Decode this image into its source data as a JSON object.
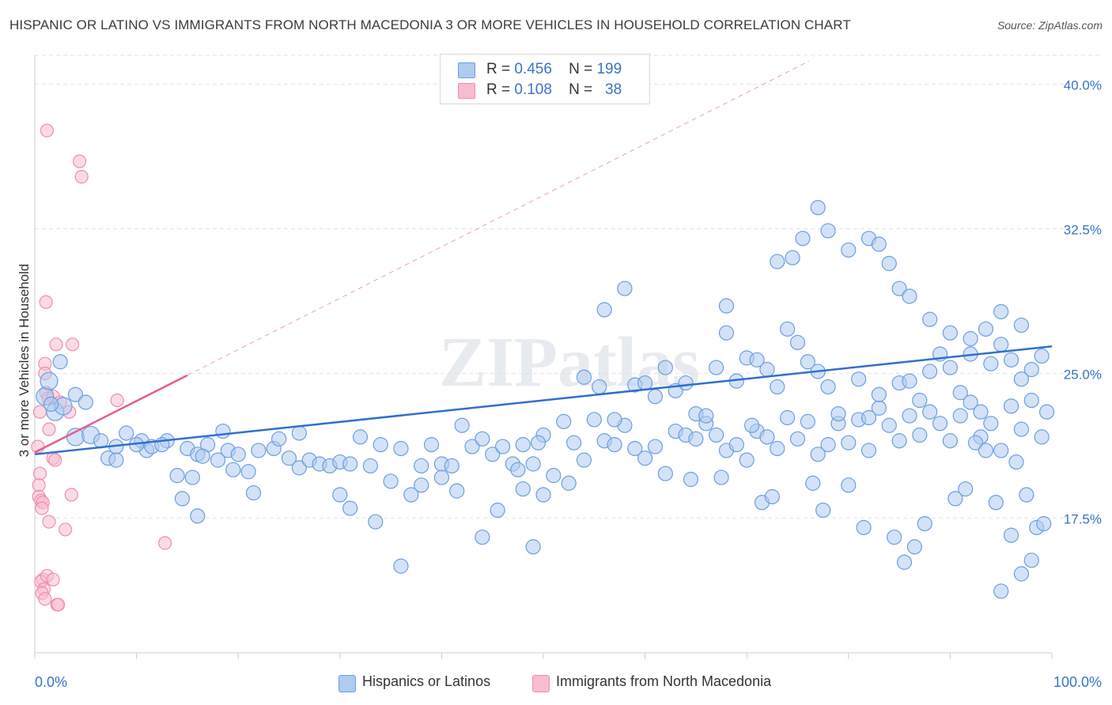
{
  "title": "HISPANIC OR LATINO VS IMMIGRANTS FROM NORTH MACEDONIA 3 OR MORE VEHICLES IN HOUSEHOLD CORRELATION CHART",
  "source": "Source: ZipAtlas.com",
  "watermark": "ZIPatlas",
  "legend_top": {
    "rows": [
      {
        "r_label": "R =",
        "r_value": "0.456",
        "n_label": "N =",
        "n_value": "199"
      },
      {
        "r_label": "R =",
        "r_value": "0.108",
        "n_label": "N =",
        "n_value": "38"
      }
    ]
  },
  "legend_bottom": [
    "Hispanics or Latinos",
    "Immigrants from North Macedonia"
  ],
  "chart_data": {
    "type": "scatter",
    "title": "HISPANIC OR LATINO VS IMMIGRANTS FROM NORTH MACEDONIA 3 OR MORE VEHICLES IN HOUSEHOLD CORRELATION CHART",
    "xlabel": "",
    "ylabel": "3 or more Vehicles in Household",
    "xlim": [
      0,
      100
    ],
    "ylim": [
      10.5,
      41.5
    ],
    "x_tick_labels": [
      "0.0%",
      "100.0%"
    ],
    "y_ticks": [
      17.5,
      25.0,
      32.5,
      40.0
    ],
    "y_tick_labels": [
      "17.5%",
      "25.0%",
      "32.5%",
      "40.0%"
    ],
    "grid": true,
    "legend_position": "bottom",
    "colors": {
      "blue_fill": "#aecbf0",
      "blue_stroke": "#6a9fe0",
      "blue_line": "#2f6fd0",
      "pink_fill": "#f7bdd0",
      "pink_stroke": "#ec8fae",
      "pink_line": "#e0608a",
      "grid": "#e2e2e2",
      "axis": "#cccccc",
      "tick_label": "#3a73c8"
    },
    "series": [
      {
        "name": "Hispanics or Latinos",
        "color": "#aecbf0",
        "trend": {
          "x": [
            0,
            100
          ],
          "y": [
            20.8,
            26.4
          ]
        },
        "points": [
          [
            1,
            23.8
          ],
          [
            1.4,
            24.6
          ],
          [
            2,
            23
          ],
          [
            2.8,
            23.3
          ],
          [
            4,
            21.7
          ],
          [
            5.5,
            21.8
          ],
          [
            6.5,
            21.5
          ],
          [
            8,
            21.2
          ],
          [
            7.2,
            20.6
          ],
          [
            9,
            21.9
          ],
          [
            10.5,
            21.5
          ],
          [
            11,
            21.0
          ],
          [
            11.5,
            21.2
          ],
          [
            13,
            21.5
          ],
          [
            12.5,
            21.3
          ],
          [
            14,
            19.7
          ],
          [
            15,
            21.1
          ],
          [
            16,
            20.8
          ],
          [
            15.5,
            19.6
          ],
          [
            17,
            21.3
          ],
          [
            18,
            20.5
          ],
          [
            19,
            21.0
          ],
          [
            18.5,
            22.0
          ],
          [
            16.5,
            20.7
          ],
          [
            20,
            20.8
          ],
          [
            21,
            19.9
          ],
          [
            22,
            21.0
          ],
          [
            23.5,
            21.1
          ],
          [
            24,
            21.6
          ],
          [
            25,
            20.6
          ],
          [
            26,
            20.1
          ],
          [
            27,
            20.5
          ],
          [
            28,
            20.3
          ],
          [
            29,
            20.2
          ],
          [
            30,
            20.4
          ],
          [
            31,
            20.3
          ],
          [
            32,
            21.7
          ],
          [
            33,
            20.2
          ],
          [
            34,
            21.3
          ],
          [
            35,
            19.4
          ],
          [
            36,
            21.1
          ],
          [
            37,
            18.7
          ],
          [
            38,
            20.2
          ],
          [
            39,
            21.3
          ],
          [
            40,
            20.3
          ],
          [
            41,
            20.2
          ],
          [
            42,
            22.3
          ],
          [
            43,
            21.2
          ],
          [
            44,
            21.6
          ],
          [
            45,
            20.8
          ],
          [
            46,
            21.2
          ],
          [
            47,
            20.3
          ],
          [
            48,
            21.3
          ],
          [
            49,
            20.3
          ],
          [
            50,
            21.8
          ],
          [
            52,
            22.5
          ],
          [
            53,
            21.4
          ],
          [
            54,
            20.5
          ],
          [
            55,
            22.6
          ],
          [
            56,
            21.5
          ],
          [
            57,
            21.3
          ],
          [
            58,
            22.3
          ],
          [
            59,
            21.1
          ],
          [
            60,
            20.6
          ],
          [
            61,
            21.2
          ],
          [
            62,
            19.8
          ],
          [
            63,
            22.0
          ],
          [
            64,
            21.8
          ],
          [
            65,
            21.6
          ],
          [
            66,
            22.4
          ],
          [
            67,
            21.8
          ],
          [
            68,
            21.0
          ],
          [
            69,
            21.3
          ],
          [
            70,
            20.5
          ],
          [
            71,
            22.0
          ],
          [
            72,
            21.7
          ],
          [
            73,
            21.1
          ],
          [
            74,
            22.7
          ],
          [
            75,
            21.6
          ],
          [
            76,
            22.5
          ],
          [
            77,
            20.8
          ],
          [
            78,
            21.3
          ],
          [
            79,
            22.4
          ],
          [
            80,
            21.4
          ],
          [
            81,
            22.6
          ],
          [
            82,
            21.0
          ],
          [
            83,
            23.2
          ],
          [
            84,
            22.3
          ],
          [
            85,
            21.5
          ],
          [
            86,
            22.8
          ],
          [
            87,
            21.8
          ],
          [
            88,
            23.0
          ],
          [
            89,
            22.4
          ],
          [
            90,
            21.5
          ],
          [
            91,
            22.8
          ],
          [
            92,
            23.5
          ],
          [
            93,
            21.7
          ],
          [
            94,
            22.4
          ],
          [
            95,
            21.0
          ],
          [
            96,
            23.3
          ],
          [
            97,
            22.1
          ],
          [
            98,
            23.6
          ],
          [
            99,
            21.7
          ],
          [
            99.5,
            23.0
          ],
          [
            4,
            23.9
          ],
          [
            5,
            23.5
          ],
          [
            2.5,
            25.6
          ],
          [
            1.6,
            23.4
          ],
          [
            8,
            20.5
          ],
          [
            10,
            21.3
          ],
          [
            14.5,
            18.5
          ],
          [
            16,
            17.6
          ],
          [
            19.5,
            20.0
          ],
          [
            21.5,
            18.8
          ],
          [
            26,
            21.9
          ],
          [
            30,
            18.7
          ],
          [
            31,
            18.0
          ],
          [
            33.5,
            17.3
          ],
          [
            36,
            15.0
          ],
          [
            38,
            19.2
          ],
          [
            40,
            19.6
          ],
          [
            41.5,
            18.9
          ],
          [
            44,
            16.5
          ],
          [
            45.5,
            17.9
          ],
          [
            47.5,
            20.0
          ],
          [
            48,
            19.0
          ],
          [
            49,
            16.0
          ],
          [
            49.5,
            21.4
          ],
          [
            50,
            18.7
          ],
          [
            51,
            19.7
          ],
          [
            52.5,
            19.3
          ],
          [
            54,
            24.8
          ],
          [
            55.5,
            24.3
          ],
          [
            56,
            28.3
          ],
          [
            57,
            22.6
          ],
          [
            58,
            29.4
          ],
          [
            59,
            24.4
          ],
          [
            60,
            24.5
          ],
          [
            61,
            23.8
          ],
          [
            62,
            25.3
          ],
          [
            63,
            24.1
          ],
          [
            64,
            24.5
          ],
          [
            65,
            22.9
          ],
          [
            66,
            22.8
          ],
          [
            67,
            25.3
          ],
          [
            68,
            27.1
          ],
          [
            69,
            24.6
          ],
          [
            70,
            25.8
          ],
          [
            71,
            25.7
          ],
          [
            72,
            25.2
          ],
          [
            73,
            24.3
          ],
          [
            74,
            27.3
          ],
          [
            75,
            26.6
          ],
          [
            76,
            25.6
          ],
          [
            77,
            25.1
          ],
          [
            78,
            24.3
          ],
          [
            79,
            22.9
          ],
          [
            80,
            19.2
          ],
          [
            81,
            24.7
          ],
          [
            82,
            22.7
          ],
          [
            83,
            23.9
          ],
          [
            84,
            30.7
          ],
          [
            85,
            24.5
          ],
          [
            86,
            24.6
          ],
          [
            87,
            23.6
          ],
          [
            88,
            25.1
          ],
          [
            89,
            26.0
          ],
          [
            90,
            25.3
          ],
          [
            91,
            24.0
          ],
          [
            92,
            26.0
          ],
          [
            93,
            23.0
          ],
          [
            94,
            25.5
          ],
          [
            95,
            26.5
          ],
          [
            96,
            25.7
          ],
          [
            97,
            24.7
          ],
          [
            98,
            25.2
          ],
          [
            99,
            25.9
          ],
          [
            70.5,
            22.3
          ],
          [
            64.5,
            19.5
          ],
          [
            67.5,
            19.6
          ],
          [
            71.5,
            18.3
          ],
          [
            72.5,
            18.6
          ],
          [
            76.5,
            19.3
          ],
          [
            77.5,
            17.9
          ],
          [
            81.5,
            17.0
          ],
          [
            84.5,
            16.5
          ],
          [
            85.5,
            15.2
          ],
          [
            86.5,
            16.0
          ],
          [
            87.5,
            17.2
          ],
          [
            90.5,
            18.5
          ],
          [
            91.5,
            19.0
          ],
          [
            92.5,
            21.4
          ],
          [
            93.5,
            21.0
          ],
          [
            94.5,
            18.3
          ],
          [
            96.5,
            20.4
          ],
          [
            97.5,
            18.7
          ],
          [
            98.5,
            17.0
          ],
          [
            99.2,
            17.2
          ],
          [
            98,
            15.3
          ],
          [
            97,
            14.6
          ],
          [
            96,
            16.6
          ],
          [
            95,
            13.7
          ],
          [
            68,
            28.5
          ],
          [
            73,
            30.8
          ],
          [
            74.5,
            31.0
          ],
          [
            75.5,
            32.0
          ],
          [
            77,
            33.6
          ],
          [
            78,
            32.4
          ],
          [
            80,
            31.4
          ],
          [
            82,
            32.0
          ],
          [
            83,
            31.7
          ],
          [
            85,
            29.4
          ],
          [
            86,
            29.0
          ],
          [
            88,
            27.8
          ],
          [
            90,
            27.1
          ],
          [
            92,
            26.8
          ],
          [
            93.5,
            27.3
          ],
          [
            95,
            28.2
          ],
          [
            97,
            27.5
          ]
        ]
      },
      {
        "name": "Immigrants from North Macedonia",
        "color": "#f7bdd0",
        "trend": {
          "x": [
            0,
            15
          ],
          "y": [
            20.9,
            24.9
          ]
        },
        "points": [
          [
            1.2,
            37.6
          ],
          [
            4.4,
            36
          ],
          [
            4.6,
            35.2
          ],
          [
            1.1,
            28.7
          ],
          [
            2.1,
            26.5
          ],
          [
            3.7,
            26.5
          ],
          [
            1.0,
            25.5
          ],
          [
            1.0,
            25.0
          ],
          [
            1.1,
            24.0
          ],
          [
            1.3,
            23.7
          ],
          [
            1.8,
            23.8
          ],
          [
            2.5,
            23.5
          ],
          [
            3.4,
            23.0
          ],
          [
            8.1,
            23.6
          ],
          [
            0.5,
            23.0
          ],
          [
            1.4,
            22.1
          ],
          [
            0.3,
            21.2
          ],
          [
            1.8,
            20.6
          ],
          [
            2.0,
            20.5
          ],
          [
            0.5,
            19.8
          ],
          [
            0.4,
            19.2
          ],
          [
            0.4,
            18.6
          ],
          [
            0.6,
            18.4
          ],
          [
            0.8,
            18.3
          ],
          [
            0.7,
            18.0
          ],
          [
            3.6,
            18.7
          ],
          [
            1.4,
            17.3
          ],
          [
            3.0,
            16.9
          ],
          [
            12.8,
            16.2
          ],
          [
            0.8,
            14.3
          ],
          [
            0.6,
            14.2
          ],
          [
            1.2,
            14.5
          ],
          [
            1.8,
            14.3
          ],
          [
            0.9,
            13.8
          ],
          [
            0.7,
            13.6
          ],
          [
            1.0,
            13.3
          ],
          [
            2.2,
            13.0
          ],
          [
            2.3,
            13.0
          ]
        ]
      }
    ]
  }
}
